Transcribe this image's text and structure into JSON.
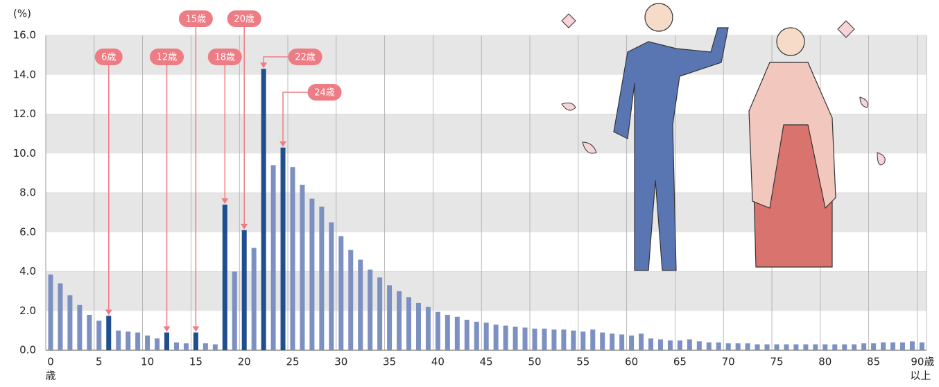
{
  "chart_data": {
    "type": "bar",
    "y_unit": "(%)",
    "categories": [
      "0",
      null,
      null,
      null,
      null,
      "5",
      null,
      null,
      null,
      null,
      "10",
      null,
      null,
      null,
      null,
      "15",
      null,
      null,
      null,
      null,
      "20",
      null,
      null,
      null,
      null,
      "25",
      null,
      null,
      null,
      null,
      "30",
      null,
      null,
      null,
      null,
      "35",
      null,
      null,
      null,
      null,
      "40",
      null,
      null,
      null,
      null,
      "45",
      null,
      null,
      null,
      null,
      "50",
      null,
      null,
      null,
      null,
      "55",
      null,
      null,
      null,
      null,
      "60",
      null,
      null,
      null,
      null,
      "65",
      null,
      null,
      null,
      null,
      "70",
      null,
      null,
      null,
      null,
      "75",
      null,
      null,
      null,
      null,
      "80",
      null,
      null,
      null,
      null,
      "85",
      null,
      null,
      null,
      null,
      "90歳"
    ],
    "x_start_note": "歳",
    "x_end_note": "以上",
    "values": [
      3.85,
      3.4,
      2.8,
      2.3,
      1.8,
      1.5,
      1.75,
      1.0,
      0.95,
      0.9,
      0.75,
      0.6,
      0.9,
      0.4,
      0.35,
      0.9,
      0.35,
      0.3,
      7.4,
      4.0,
      6.1,
      5.2,
      14.3,
      9.4,
      10.3,
      9.3,
      8.4,
      7.7,
      7.3,
      6.5,
      5.8,
      5.1,
      4.6,
      4.1,
      3.7,
      3.3,
      3.0,
      2.7,
      2.4,
      2.2,
      1.95,
      1.8,
      1.7,
      1.55,
      1.45,
      1.4,
      1.3,
      1.25,
      1.2,
      1.15,
      1.1,
      1.1,
      1.05,
      1.05,
      1.0,
      0.95,
      1.05,
      0.9,
      0.85,
      0.8,
      0.75,
      0.85,
      0.6,
      0.55,
      0.5,
      0.5,
      0.55,
      0.45,
      0.4,
      0.4,
      0.35,
      0.35,
      0.35,
      0.3,
      0.3,
      0.3,
      0.3,
      0.3,
      0.3,
      0.3,
      0.3,
      0.3,
      0.3,
      0.3,
      0.35,
      0.35,
      0.4,
      0.4,
      0.4,
      0.45,
      0.4
    ],
    "color": "#7d90c2",
    "highlight_color": "#1f4f8e",
    "annotation_color": "#ee7c84",
    "annotations": [
      {
        "label": "6歳",
        "at": 6
      },
      {
        "label": "12歳",
        "at": 12
      },
      {
        "label": "15歳",
        "at": 15
      },
      {
        "label": "18歳",
        "at": 18
      },
      {
        "label": "20歳",
        "at": 20
      },
      {
        "label": "22歳",
        "at": 22
      },
      {
        "label": "24歳",
        "at": 24
      }
    ],
    "ylim": [
      0,
      16
    ],
    "yticks": [
      {
        "value": 0,
        "label": "0.0"
      },
      {
        "value": 2,
        "label": "2.0"
      },
      {
        "value": 4,
        "label": "4.0"
      },
      {
        "value": 6,
        "label": "6.0"
      },
      {
        "value": 8,
        "label": "8.0"
      },
      {
        "value": 10,
        "label": "10.0"
      },
      {
        "value": 12,
        "label": "12.0"
      },
      {
        "value": 14,
        "label": "14.0"
      },
      {
        "value": 16,
        "label": "16.0"
      }
    ],
    "bands": true
  }
}
